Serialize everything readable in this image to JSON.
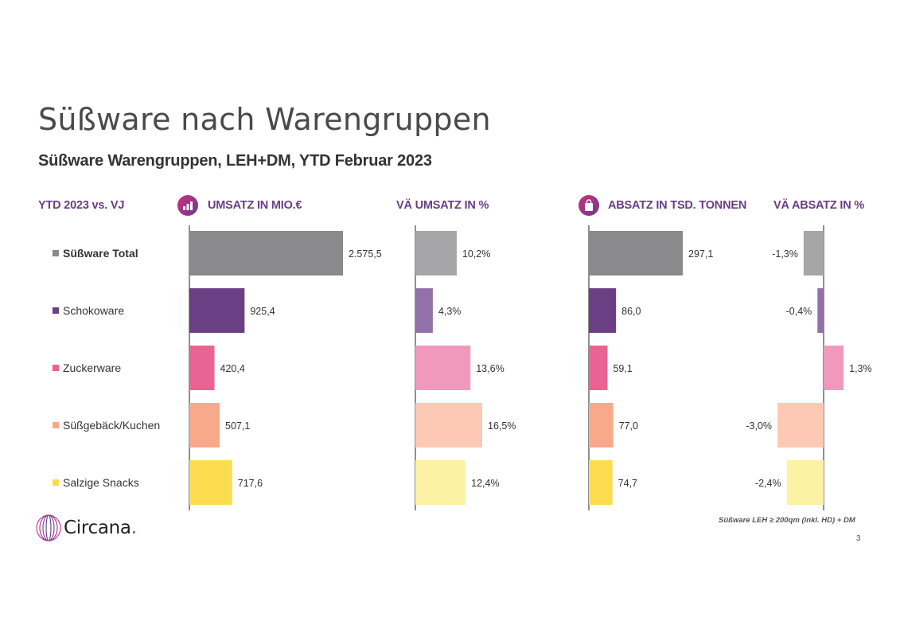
{
  "title": "Süßware nach Warengruppen",
  "subtitle": "Süßware Warengruppen, LEH+DM, YTD Februar 2023",
  "row_header": "YTD 2023 vs. VJ",
  "icons": {
    "umsatz": "bar-chart-icon",
    "absatz": "shopping-bag-icon"
  },
  "colors": {
    "Süßware Total": "#8a8a8c",
    "Schokoware": "#6b3f84",
    "Zuckerware": "#e96393",
    "Süßgebäck/Kuchen": "#f7a98a",
    "Salzige Snacks": "#fcdc4f"
  },
  "light_colors": {
    "Süßware Total": "#a6a6a8",
    "Schokoware": "#9470a8",
    "Zuckerware": "#f199bc",
    "Süßgebäck/Kuchen": "#fdc9b5",
    "Salzige Snacks": "#fdf1a6"
  },
  "chart_data": [
    {
      "type": "bar",
      "title": "UMSATZ IN MIO.€",
      "categories": [
        "Süßware Total",
        "Schokoware",
        "Zuckerware",
        "Süßgebäck/Kuchen",
        "Salzige Snacks"
      ],
      "values": [
        2575.5,
        925.4,
        420.4,
        507.1,
        717.6
      ],
      "labels": [
        "2.575,5",
        "925,4",
        "420,4",
        "507,1",
        "717,6"
      ]
    },
    {
      "type": "bar",
      "title": "VÄ UMSATZ IN %",
      "categories": [
        "Süßware Total",
        "Schokoware",
        "Zuckerware",
        "Süßgebäck/Kuchen",
        "Salzige Snacks"
      ],
      "values": [
        10.2,
        4.3,
        13.6,
        16.5,
        12.4
      ],
      "labels": [
        "10,2%",
        "4,3%",
        "13,6%",
        "16,5%",
        "12,4%"
      ]
    },
    {
      "type": "bar",
      "title": "ABSATZ IN TSD. TONNEN",
      "categories": [
        "Süßware Total",
        "Schokoware",
        "Zuckerware",
        "Süßgebäck/Kuchen",
        "Salzige Snacks"
      ],
      "values": [
        297.1,
        86.0,
        59.1,
        77.0,
        74.7
      ],
      "labels": [
        "297,1",
        "86,0",
        "59,1",
        "77,0",
        "74,7"
      ]
    },
    {
      "type": "bar",
      "title": "VÄ ABSATZ IN %",
      "categories": [
        "Süßware Total",
        "Schokoware",
        "Zuckerware",
        "Süßgebäck/Kuchen",
        "Salzige Snacks"
      ],
      "values": [
        -1.3,
        -0.4,
        1.3,
        -3.0,
        -2.4
      ],
      "labels": [
        "-1,3%",
        "-0,4%",
        "1,3%",
        "-3,0%",
        "-2,4%"
      ]
    }
  ],
  "footnote": "Süßware LEH ≥ 200qm (inkl. HD) + DM",
  "page_number": "3",
  "logo": {
    "text": "Circana",
    "dot": "."
  }
}
